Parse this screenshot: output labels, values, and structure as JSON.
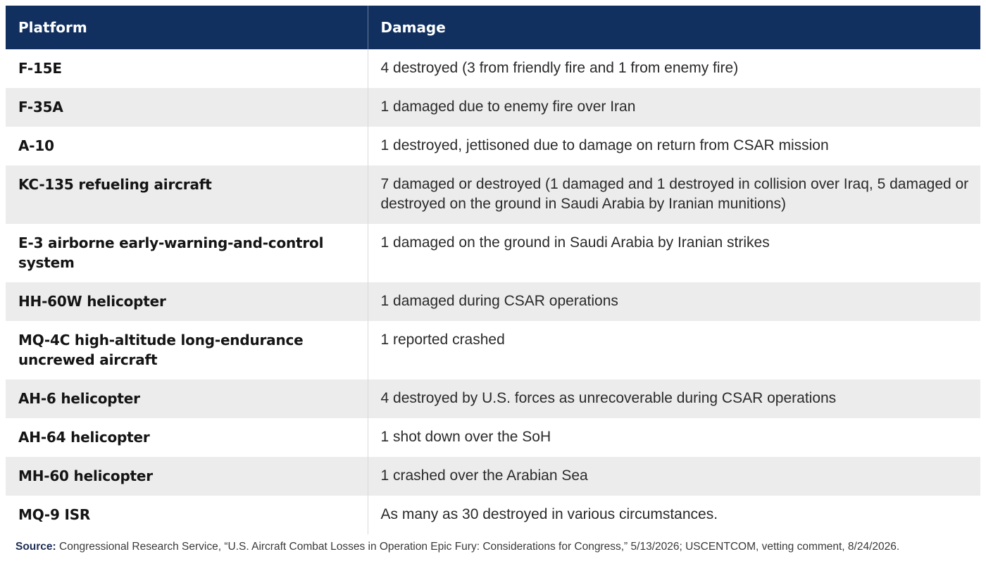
{
  "table": {
    "headers": {
      "platform": "Platform",
      "damage": "Damage"
    },
    "rows": [
      {
        "platform": "F-15E",
        "damage": "4 destroyed (3 from friendly fire and 1 from enemy fire)"
      },
      {
        "platform": "F-35A",
        "damage": "1 damaged due to enemy fire over Iran"
      },
      {
        "platform": "A-10",
        "damage": "1 destroyed, jettisoned due to damage on return from CSAR mission"
      },
      {
        "platform": "KC-135 refueling aircraft",
        "damage": "7 damaged or destroyed (1 damaged and 1 destroyed in collision over Iraq, 5 damaged or destroyed on the ground in Saudi Arabia by Iranian munitions)"
      },
      {
        "platform": "E-3 airborne early-warning-and-control system",
        "damage": "1 damaged on the ground in Saudi Arabia by Iranian strikes"
      },
      {
        "platform": "HH-60W helicopter",
        "damage": "1 damaged during CSAR operations"
      },
      {
        "platform": "MQ-4C high-altitude long-endurance uncrewed aircraft",
        "damage": "1 reported crashed"
      },
      {
        "platform": "AH-6 helicopter",
        "damage": "4 destroyed by U.S. forces as unrecoverable during CSAR operations"
      },
      {
        "platform": "AH-64 helicopter",
        "damage": "1 shot down over the SoH"
      },
      {
        "platform": "MH-60 helicopter",
        "damage": "1 crashed over the Arabian Sea"
      },
      {
        "platform": "MQ-9 ISR",
        "damage": "As many as 30 destroyed in various circumstances."
      }
    ]
  },
  "source": {
    "label": "Source:",
    "text": " Congressional Research Service, “U.S. Aircraft Combat Losses in Operation Epic Fury: Considerations for Congress,” 5/13/2026; USCENTCOM, vetting comment, 8/24/2026."
  },
  "colors": {
    "header_bg": "#11305f",
    "header_text": "#ffffff",
    "stripe": "#ececec"
  }
}
